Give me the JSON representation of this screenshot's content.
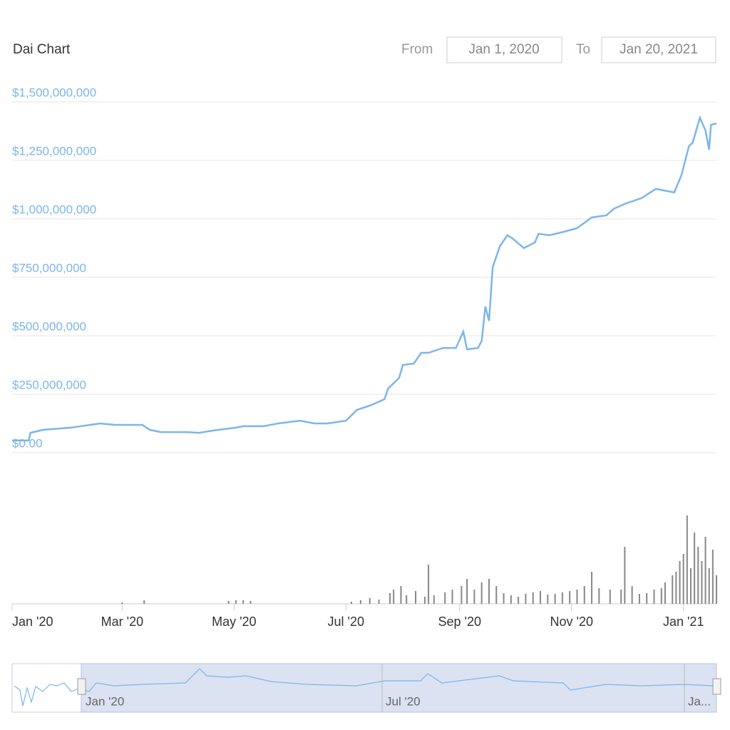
{
  "header": {
    "title": "Dai Chart",
    "from_label": "From",
    "from_value": "Jan 1, 2020",
    "to_label": "To",
    "to_value": "Jan 20, 2021"
  },
  "chart_data": {
    "type": "line",
    "color": "#7cb5ec",
    "grid": true,
    "x": [
      0,
      9,
      10,
      17,
      32,
      48,
      56,
      71,
      75,
      81,
      95,
      102,
      110,
      122,
      126,
      137,
      145,
      157,
      165,
      172,
      182,
      188,
      196,
      203,
      205,
      211,
      213,
      219,
      223,
      227,
      235,
      242,
      246,
      248,
      254,
      256,
      258,
      260,
      262,
      266,
      270,
      273,
      279,
      285,
      287,
      293,
      301,
      308,
      316,
      324,
      328,
      335,
      343,
      351,
      361,
      365,
      369,
      371,
      375,
      378,
      380,
      381,
      384
    ],
    "values": [
      52000000,
      52000000,
      85000000,
      98000000,
      107000000,
      125000000,
      119000000,
      119000000,
      98000000,
      88000000,
      88000000,
      85000000,
      95000000,
      107000000,
      113000000,
      113000000,
      125000000,
      137000000,
      125000000,
      125000000,
      137000000,
      183000000,
      204000000,
      229000000,
      274000000,
      320000000,
      375000000,
      381000000,
      427000000,
      427000000,
      448000000,
      448000000,
      518000000,
      442000000,
      448000000,
      479000000,
      625000000,
      564000000,
      793000000,
      884000000,
      930000000,
      915000000,
      875000000,
      899000000,
      936000000,
      930000000,
      945000000,
      960000000,
      1006000000,
      1015000000,
      1043000000,
      1067000000,
      1088000000,
      1128000000,
      1113000000,
      1189000000,
      1311000000,
      1326000000,
      1433000000,
      1378000000,
      1296000000,
      1402000000,
      1408000000
    ],
    "xlim": [
      0,
      384
    ],
    "xticks": [
      {
        "value": 0,
        "label": "Jan '20"
      },
      {
        "value": 60,
        "label": "Mar '20"
      },
      {
        "value": 121,
        "label": "May '20"
      },
      {
        "value": 182,
        "label": "Jul '20"
      },
      {
        "value": 244,
        "label": "Sep '20"
      },
      {
        "value": 305,
        "label": "Nov '20"
      },
      {
        "value": 366,
        "label": "Jan '21"
      }
    ],
    "ylim": [
      0,
      1500000000
    ],
    "yticks": [
      {
        "value": 0,
        "label": "$0.00"
      },
      {
        "value": 250000000,
        "label": "$250,000,000"
      },
      {
        "value": 500000000,
        "label": "$500,000,000"
      },
      {
        "value": 750000000,
        "label": "$750,000,000"
      },
      {
        "value": 1000000000,
        "label": "$1,000,000,000"
      },
      {
        "value": 1250000000,
        "label": "$1,250,000,000"
      },
      {
        "value": 1500000000,
        "label": "$1,500,000,000"
      }
    ],
    "volume": {
      "color": "#888888",
      "x": [
        60,
        72,
        118,
        122,
        126,
        130,
        185,
        190,
        195,
        200,
        206,
        208,
        212,
        215,
        220,
        225,
        227,
        230,
        236,
        240,
        245,
        248,
        252,
        256,
        260,
        264,
        268,
        272,
        276,
        280,
        284,
        288,
        292,
        296,
        300,
        304,
        308,
        312,
        316,
        320,
        326,
        332,
        334,
        338,
        342,
        346,
        350,
        354,
        356,
        360,
        362,
        364,
        366,
        368,
        370,
        372,
        374,
        376,
        378,
        380,
        382,
        384
      ],
      "values": [
        2,
        5,
        4,
        5,
        5,
        4,
        3,
        5,
        8,
        6,
        15,
        20,
        25,
        12,
        18,
        10,
        55,
        12,
        16,
        20,
        25,
        35,
        20,
        30,
        35,
        25,
        15,
        12,
        10,
        14,
        16,
        18,
        13,
        14,
        16,
        18,
        20,
        25,
        45,
        22,
        20,
        20,
        80,
        25,
        14,
        15,
        20,
        22,
        30,
        40,
        45,
        60,
        70,
        124,
        50,
        100,
        80,
        60,
        94,
        50,
        76,
        40
      ]
    },
    "navigator_labels": [
      "Jan '20",
      "Jul '20",
      "Ja..."
    ]
  }
}
